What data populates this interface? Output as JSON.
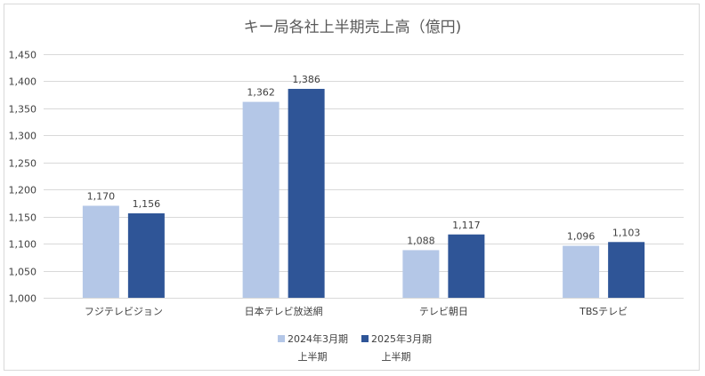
{
  "chart_data": {
    "type": "bar",
    "title": "キー局各社上半期売上高（億円)",
    "categories": [
      "フジテレビジョン",
      "日本テレビ放送網",
      "テレビ朝日",
      "TBSテレビ"
    ],
    "series": [
      {
        "name_lines": [
          "2024年3月期",
          "上半期"
        ],
        "color": "#b4c7e7",
        "values": [
          1170,
          1362,
          1088,
          1096
        ],
        "labels": [
          "1,170",
          "1,362",
          "1,088",
          "1,096"
        ]
      },
      {
        "name_lines": [
          "2025年3月期",
          "上半期"
        ],
        "color": "#2f5597",
        "values": [
          1156,
          1386,
          1117,
          1103
        ],
        "labels": [
          "1,156",
          "1,386",
          "1,117",
          "1,103"
        ]
      }
    ],
    "ylim": [
      1000,
      1450
    ],
    "yticks": [
      1000,
      1050,
      1100,
      1150,
      1200,
      1250,
      1300,
      1350,
      1400,
      1450
    ],
    "ytick_labels": [
      "1,000",
      "1,050",
      "1,100",
      "1,150",
      "1,200",
      "1,250",
      "1,300",
      "1,350",
      "1,400",
      "1,450"
    ],
    "grid": true,
    "legend": "bottom"
  }
}
